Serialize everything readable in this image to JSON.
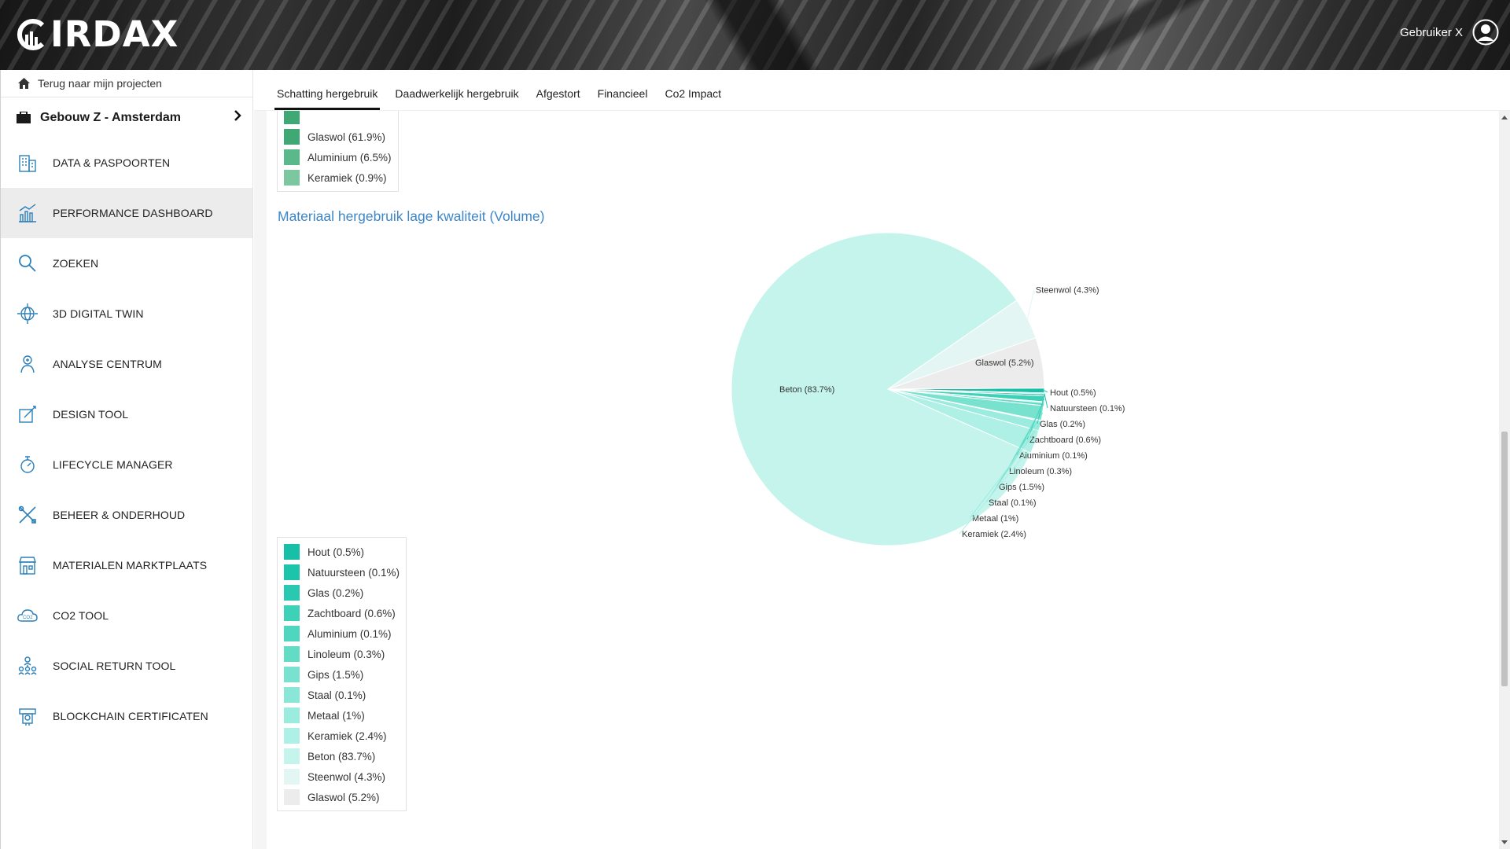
{
  "header": {
    "logo_text": "IRDAX",
    "user_name": "Gebruiker X"
  },
  "sidebar": {
    "back_label": "Terug naar mijn projecten",
    "project_name": "Gebouw Z - Amsterdam",
    "items": [
      {
        "label": "DATA & PASPOORTEN",
        "icon": "building-icon",
        "active": false
      },
      {
        "label": "PERFORMANCE DASHBOARD",
        "icon": "chart-icon",
        "active": true
      },
      {
        "label": "ZOEKEN",
        "icon": "search-icon",
        "active": false
      },
      {
        "label": "3D DIGITAL TWIN",
        "icon": "globe-icon",
        "active": false
      },
      {
        "label": "ANALYSE CENTRUM",
        "icon": "person-analysis-icon",
        "active": false
      },
      {
        "label": "DESIGN TOOL",
        "icon": "design-icon",
        "active": false
      },
      {
        "label": "LIFECYCLE MANAGER",
        "icon": "stopwatch-icon",
        "active": false
      },
      {
        "label": "BEHEER & ONDERHOUD",
        "icon": "tools-icon",
        "active": false
      },
      {
        "label": "MATERIALEN MARKTPLAATS",
        "icon": "market-icon",
        "active": false
      },
      {
        "label": "CO2 TOOL",
        "icon": "co2-cloud-icon",
        "active": false
      },
      {
        "label": "SOCIAL RETURN TOOL",
        "icon": "people-network-icon",
        "active": false
      },
      {
        "label": "BLOCKCHAIN CERTIFICATEN",
        "icon": "certificate-icon",
        "active": false
      }
    ]
  },
  "tabs": [
    {
      "label": "Schatting hergebruik",
      "active": true
    },
    {
      "label": "Daadwerkelijk hergebruik",
      "active": false
    },
    {
      "label": "Afgestort",
      "active": false
    },
    {
      "label": "Financieel",
      "active": false
    },
    {
      "label": "Co2 Impact",
      "active": false
    }
  ],
  "legend_top": [
    {
      "label": "Glaswol (61.9%)",
      "color": "#3fa875"
    },
    {
      "label": "Aluminium (6.5%)",
      "color": "#5ab88a"
    },
    {
      "label": "Keramiek (0.9%)",
      "color": "#7cc79f"
    }
  ],
  "chart_data": {
    "type": "pie",
    "title": "Materiaal hergebruik lage kwaliteit (Volume)",
    "slices": [
      {
        "label": "Hout (0.5%)",
        "value": 0.5,
        "color": "#17bfa6"
      },
      {
        "label": "Natuursteen (0.1%)",
        "value": 0.1,
        "color": "#1cc4ab"
      },
      {
        "label": "Glas (0.2%)",
        "value": 0.2,
        "color": "#28c9b0"
      },
      {
        "label": "Zachtboard (0.6%)",
        "value": 0.6,
        "color": "#3dd1b8"
      },
      {
        "label": "Aluminium (0.1%)",
        "value": 0.1,
        "color": "#4fd6bf"
      },
      {
        "label": "Linoleum (0.3%)",
        "value": 0.3,
        "color": "#63dcc6"
      },
      {
        "label": "Gips (1.5%)",
        "value": 1.5,
        "color": "#78e2cf"
      },
      {
        "label": "Staal (0.1%)",
        "value": 0.1,
        "color": "#8ae7d7"
      },
      {
        "label": "Metaal (1%)",
        "value": 1.0,
        "color": "#9becdf"
      },
      {
        "label": "Keramiek (2.4%)",
        "value": 2.4,
        "color": "#aef0e6"
      },
      {
        "label": "Beton (83.7%)",
        "value": 83.7,
        "color": "#c4f4ec"
      },
      {
        "label": "Steenwol (4.3%)",
        "value": 4.3,
        "color": "#e3f6f3"
      },
      {
        "label": "Glaswol (5.2%)",
        "value": 5.2,
        "color": "#ececec"
      }
    ]
  }
}
